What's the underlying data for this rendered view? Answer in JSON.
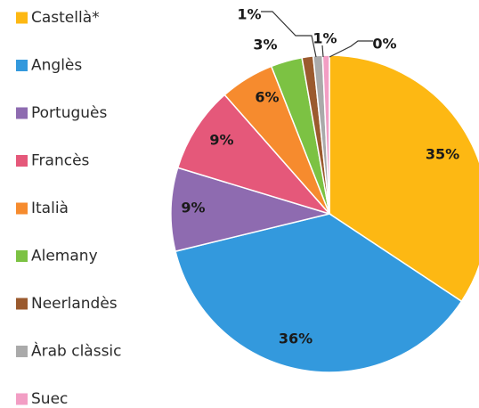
{
  "chart_data": {
    "type": "pie",
    "categories": [
      "Castellà*",
      "Anglès",
      "Portuguès",
      "Francès",
      "Italià",
      "Alemany",
      "Neerlandès",
      "Àrab clàssic",
      "Suec"
    ],
    "values": [
      35,
      36,
      9,
      9,
      6,
      3,
      1,
      1,
      0
    ],
    "value_labels": [
      "35%",
      "36%",
      "9%",
      "9%",
      "6%",
      "3%",
      "1%",
      "1%",
      "0%"
    ],
    "legend_position": "left",
    "colors": [
      "#FDB813",
      "#3399DD",
      "#8E6BB0",
      "#E5587A",
      "#F68B2E",
      "#7CC243",
      "#9B5A2E",
      "#AAAAAA",
      "#F29EC4"
    ]
  }
}
